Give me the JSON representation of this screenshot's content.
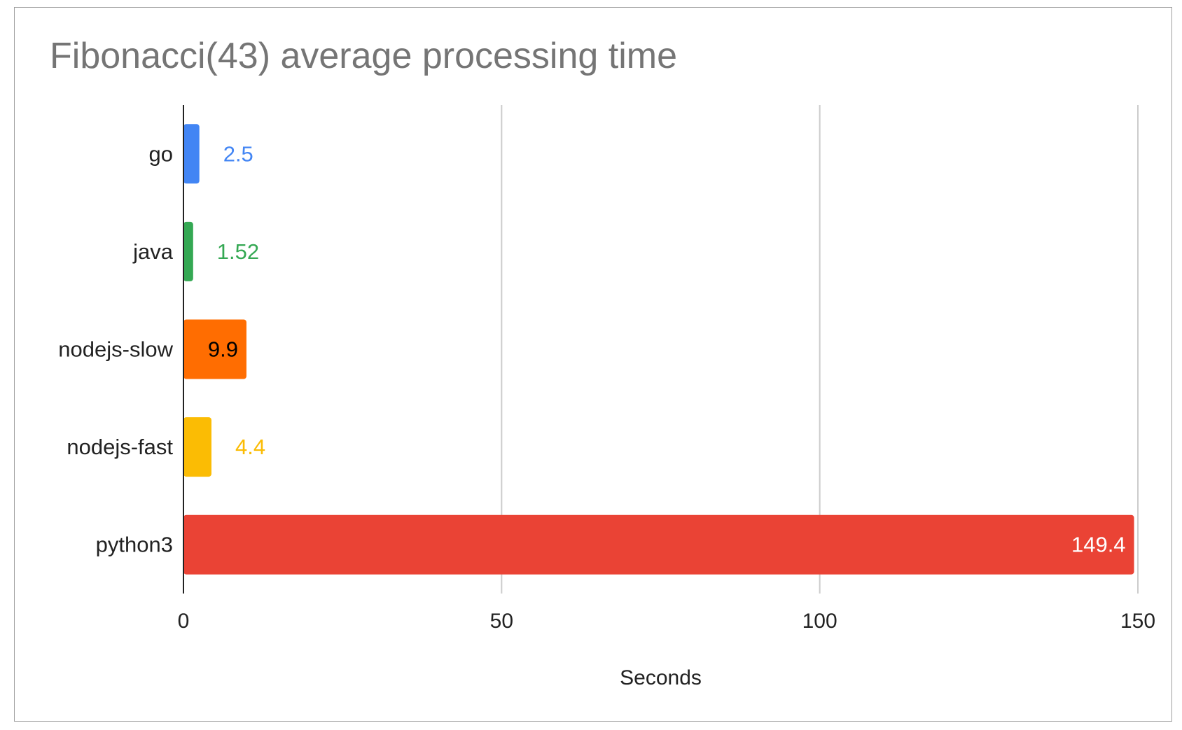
{
  "chart_data": {
    "type": "bar",
    "orientation": "horizontal",
    "title": "Fibonacci(43) average processing time",
    "xlabel": "Seconds",
    "ylabel": "",
    "xlim": [
      0,
      150
    ],
    "xticks": [
      "0",
      "50",
      "100",
      "150"
    ],
    "grid": true,
    "legend": "none",
    "categories": [
      "go",
      "java",
      "nodejs-slow",
      "nodejs-fast",
      "python3"
    ],
    "values": [
      2.5,
      1.52,
      9.9,
      4.4,
      149.4
    ],
    "data_labels": [
      "2.5",
      "1.52",
      "9.9",
      "4.4",
      "149.4"
    ],
    "colors": [
      "#4285f4",
      "#34a853",
      "#ff6d01",
      "#fbbc04",
      "#ea4335"
    ],
    "label_colors": [
      "#4285f4",
      "#34a853",
      "#000000",
      "#fbbc04",
      "#ffffff"
    ],
    "label_inside": [
      false,
      false,
      true,
      false,
      true
    ]
  }
}
